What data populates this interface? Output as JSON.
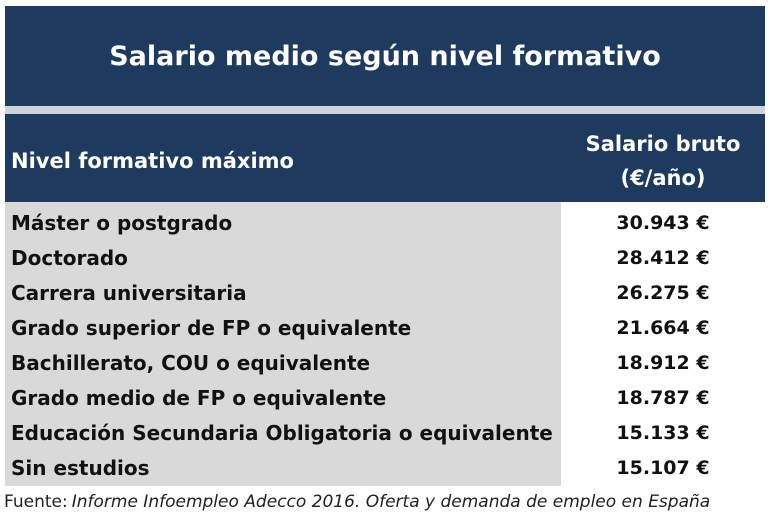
{
  "chart_data": {
    "type": "table",
    "title": "Salario medio según nivel formativo",
    "columns": [
      "Nivel formativo máximo",
      "Salario bruto (€/año)"
    ],
    "column_header_right_lines": [
      "Salario bruto",
      "(€/año)"
    ],
    "categories": [
      "Máster o postgrado",
      "Doctorado",
      "Carrera universitaria",
      "Grado superior de FP o equivalente",
      "Bachillerato, COU o equivalente",
      "Grado medio de FP o equivalente",
      "Educación Secundaria Obligatoria o equivalente",
      "Sin estudios"
    ],
    "values": [
      30943,
      28412,
      26275,
      21664,
      18912,
      18787,
      15133,
      15107
    ],
    "value_labels": [
      "30.943 €",
      "28.412 €",
      "26.275 €",
      "21.664 €",
      "18.912 €",
      "18.787 €",
      "15.133 €",
      "15.107 €"
    ]
  },
  "source": {
    "label": "Fuente:",
    "text": "Informe Infoempleo Adecco 2016. Oferta y demanda de empleo en España"
  },
  "colors": {
    "header_bg": "#1e3a5f",
    "label_col_bg": "#d9d9d9",
    "value_col_bg": "#ffffff"
  }
}
